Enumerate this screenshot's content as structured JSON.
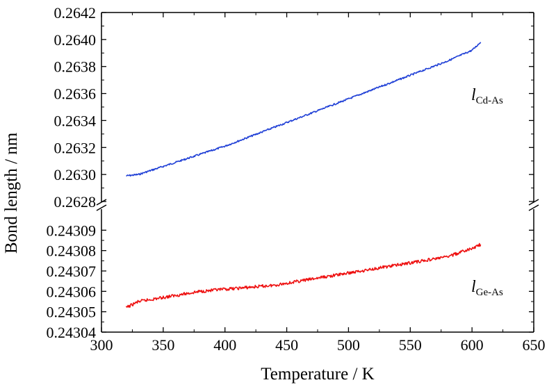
{
  "chart_data": {
    "type": "line",
    "xlabel": "Temperature / K",
    "ylabel": "Bond length / nm",
    "xlim": [
      300,
      650
    ],
    "xticks": [
      300,
      350,
      400,
      450,
      500,
      550,
      600,
      650
    ],
    "broken_y_axis": true,
    "panels": [
      {
        "position": "top",
        "ylim": [
          0.2628,
          0.2642
        ],
        "yticks": [
          "0.2628",
          "0.2630",
          "0.2632",
          "0.2634",
          "0.2636",
          "0.2638",
          "0.2640",
          "0.2642"
        ],
        "series": [
          {
            "label_main": "l",
            "label_sub": "Cd-As",
            "color": "#1f3fd6",
            "x": [
              320,
              330,
              340,
              350,
              360,
              380,
              400,
              420,
              440,
              460,
              480,
              500,
              520,
              540,
              560,
              580,
              600,
              607
            ],
            "y": [
              0.26299,
              0.263,
              0.26303,
              0.26306,
              0.26309,
              0.26315,
              0.26321,
              0.26328,
              0.26335,
              0.26342,
              0.26349,
              0.26356,
              0.26363,
              0.2637,
              0.26377,
              0.26384,
              0.26392,
              0.26398
            ]
          }
        ]
      },
      {
        "position": "bottom",
        "ylim": [
          0.24304,
          0.2431
        ],
        "yticks": [
          "0.24304",
          "0.24305",
          "0.24306",
          "0.24307",
          "0.24308",
          "0.24309"
        ],
        "series": [
          {
            "label_main": "l",
            "label_sub": "Ge-As",
            "color": "#ee1111",
            "x": [
              320,
              330,
              340,
              350,
              360,
              380,
              400,
              420,
              440,
              460,
              480,
              500,
              520,
              540,
              560,
              580,
              600,
              607
            ],
            "y": [
              0.243052,
              0.243055,
              0.243056,
              0.243057,
              0.243058,
              0.24306,
              0.243061,
              0.243062,
              0.243063,
              0.243065,
              0.243067,
              0.243069,
              0.243071,
              0.243073,
              0.243075,
              0.243077,
              0.243081,
              0.243083
            ]
          }
        ]
      }
    ]
  }
}
